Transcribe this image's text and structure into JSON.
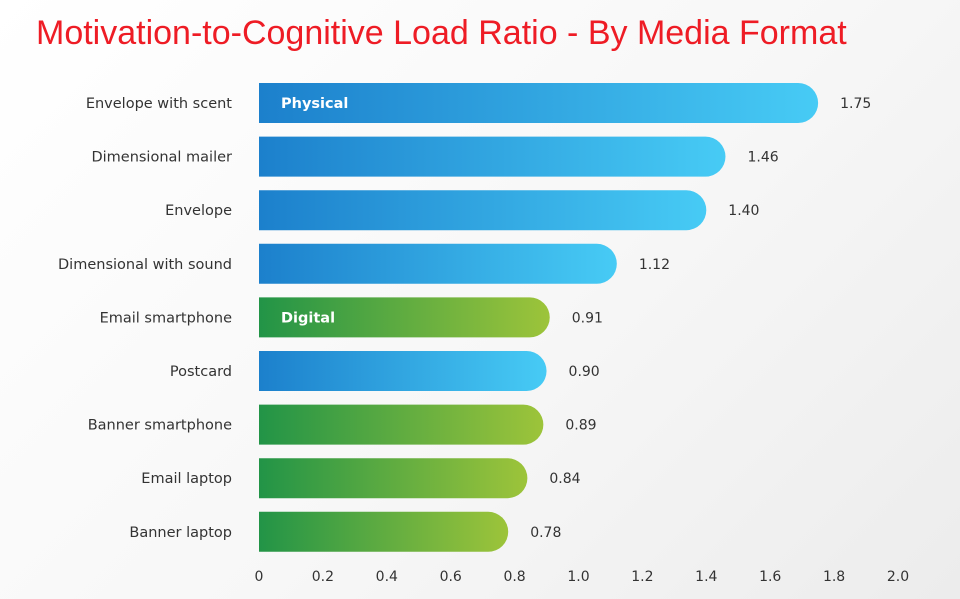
{
  "chart_data": {
    "type": "bar",
    "orientation": "horizontal",
    "title": "Motivation-to-Cognitive Load Ratio - By Media Format",
    "categories": [
      "Envelope with scent",
      "Dimensional mailer",
      "Envelope",
      "Dimensional with sound",
      "Email smartphone",
      "Postcard",
      "Banner smartphone",
      "Email laptop",
      "Banner laptop"
    ],
    "values": [
      1.75,
      1.46,
      1.4,
      1.12,
      0.91,
      0.9,
      0.89,
      0.84,
      0.78
    ],
    "value_labels": [
      "1.75",
      "1.46",
      "1.40",
      "1.12",
      "0.91",
      "0.90",
      "0.89",
      "0.84",
      "0.78"
    ],
    "groups": [
      "Physical",
      "Physical",
      "Physical",
      "Physical",
      "Digital",
      "Physical",
      "Digital",
      "Digital",
      "Digital"
    ],
    "group_labels": [
      {
        "name": "Physical",
        "category": "Envelope with scent"
      },
      {
        "name": "Digital",
        "category": "Email smartphone"
      }
    ],
    "group_colors": {
      "Physical": [
        "#1c80cc",
        "#47cbf5"
      ],
      "Digital": [
        "#229447",
        "#9dc43a"
      ]
    },
    "xlim": [
      0,
      2.0
    ],
    "xticks": [
      "0",
      "0.2",
      "0.4",
      "0.6",
      "0.8",
      "1.0",
      "1.2",
      "1.4",
      "1.6",
      "1.8",
      "2.0"
    ],
    "xlabel": "",
    "ylabel": "",
    "grid": false,
    "legend": "none"
  }
}
